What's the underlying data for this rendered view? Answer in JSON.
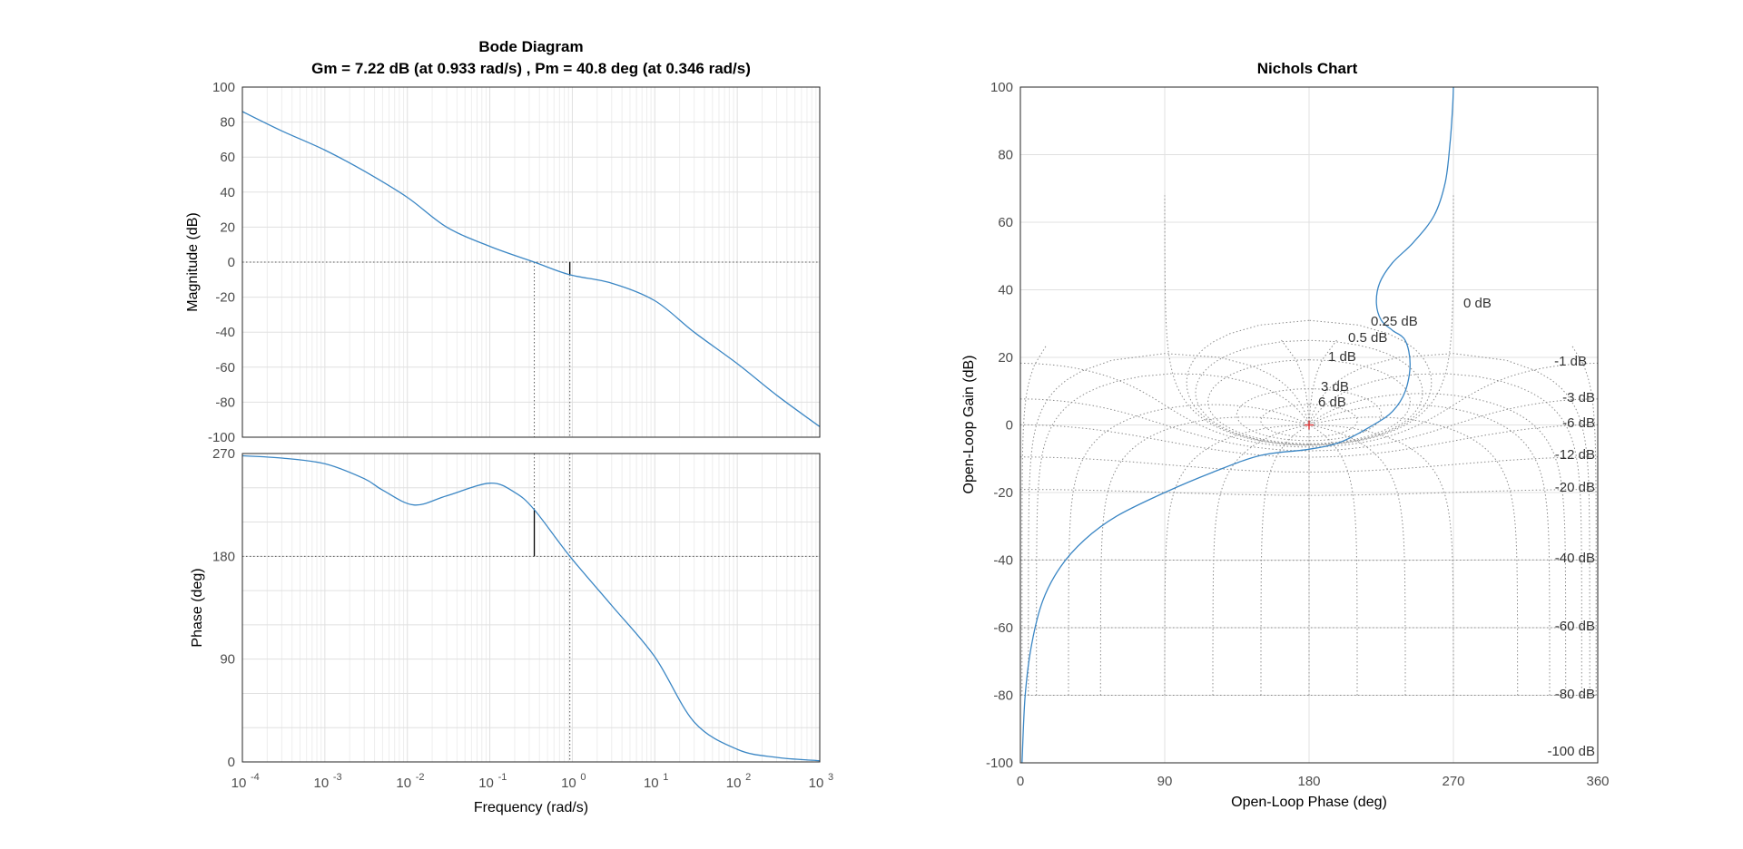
{
  "colors": {
    "curve": "#3a86c4",
    "axis": "#262626",
    "grid": "#e0e0e0",
    "grid_minor": "#eeeeee",
    "dotted": "#8c8c8c",
    "crit_point": "#d62728",
    "tick_label": "#4d4d4d"
  },
  "chart_data": [
    {
      "type": "line",
      "title": "Bode Diagram",
      "subtitle": "Gm = 7.22 dB (at 0.933 rad/s) ,  Pm = 40.8 deg (at 0.346 rad/s)",
      "xlabel": "Frequency  (rad/s)",
      "xscale": "log",
      "xlim": [
        0.0001,
        1000
      ],
      "x_tick_exponents": [
        -4,
        -3,
        -2,
        -1,
        0,
        1,
        2,
        3
      ],
      "grid": true,
      "gain_margin": {
        "value_db": 7.22,
        "frequency": 0.933
      },
      "phase_margin": {
        "value_deg": 40.8,
        "frequency": 0.346
      },
      "magnitude": {
        "ylabel": "Magnitude (dB)",
        "ylim": [
          -100,
          100
        ],
        "yticks": [
          100,
          80,
          60,
          40,
          20,
          0,
          -20,
          -40,
          -60,
          -80,
          -100
        ],
        "x": [
          0.0001,
          0.0003,
          0.001,
          0.003,
          0.01,
          0.03,
          0.1,
          0.346,
          0.933,
          3,
          10,
          30,
          100,
          300,
          1000
        ],
        "y": [
          86,
          75,
          64,
          52,
          37,
          20,
          9,
          0,
          -7.22,
          -12,
          -22,
          -40,
          -58,
          -76,
          -94
        ]
      },
      "phase": {
        "ylabel": "Phase (deg)",
        "ylim": [
          0,
          270
        ],
        "yticks": [
          270,
          180,
          90,
          0
        ],
        "x": [
          0.0001,
          0.0003,
          0.001,
          0.003,
          0.005,
          0.012,
          0.03,
          0.1,
          0.2,
          0.346,
          0.933,
          3,
          10,
          30,
          100,
          300,
          1000
        ],
        "y": [
          268,
          266,
          261,
          248,
          238,
          225,
          233,
          244,
          236,
          220.8,
          180,
          137,
          92,
          35,
          11,
          4,
          1
        ]
      }
    },
    {
      "type": "line",
      "title": "Nichols Chart",
      "xlabel": "Open-Loop Phase (deg)",
      "ylabel": "Open-Loop Gain (dB)",
      "xlim": [
        0,
        360
      ],
      "ylim": [
        -100,
        100
      ],
      "xticks": [
        0,
        90,
        180,
        270,
        360
      ],
      "yticks": [
        100,
        80,
        60,
        40,
        20,
        0,
        -20,
        -40,
        -60,
        -80,
        -100
      ],
      "critical_point": [
        180,
        0
      ],
      "grid_labels": [
        "0 dB",
        "0.25 dB",
        "0.5 dB",
        "1 dB",
        "3 dB",
        "6 dB",
        "-1 dB",
        "-3 dB",
        "-6 dB",
        "-12 dB",
        "-20 dB",
        "-40 dB",
        "-60 dB",
        "-80 dB",
        "-100 dB"
      ],
      "curve": {
        "x": [
          1,
          3,
          7,
          14,
          25,
          40,
          60,
          90,
          120,
          150,
          180,
          200,
          220,
          232,
          240,
          243,
          240,
          232,
          225,
          222,
          224,
          232,
          245,
          258,
          265,
          268,
          269.5,
          270
        ],
        "y": [
          -100,
          -80,
          -65,
          -52,
          -42,
          -34,
          -27,
          -20,
          -14,
          -9,
          -7.2,
          -5,
          0,
          4,
          10,
          18,
          25,
          28,
          31,
          36,
          42,
          48,
          54,
          62,
          72,
          84,
          94,
          100
        ]
      }
    }
  ]
}
